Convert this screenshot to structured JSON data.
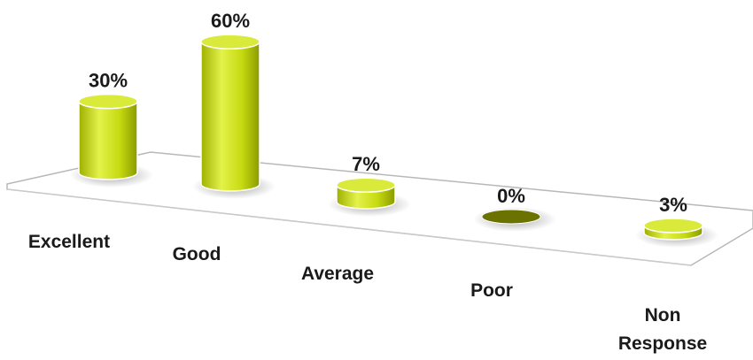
{
  "chart_data": {
    "type": "bar",
    "style": "3d-cylinder",
    "categories": [
      "Excellent",
      "Good",
      "Average",
      "Poor",
      "Non Response"
    ],
    "values": [
      30,
      60,
      7,
      0,
      3
    ],
    "unit": "%",
    "value_labels": [
      "30%",
      "60%",
      "7%",
      "0%",
      "3%"
    ],
    "category_labels": [
      [
        "Excellent"
      ],
      [
        "Good"
      ],
      [
        "Average"
      ],
      [
        "Poor"
      ],
      [
        "Non",
        "Response"
      ]
    ],
    "colors": {
      "bar_side": "#c8dc10",
      "bar_top": "#d9ea3a",
      "bar_zero": "#6b7200",
      "floor_edge": "#b8b8b8"
    },
    "grid": false,
    "legend": "none"
  }
}
